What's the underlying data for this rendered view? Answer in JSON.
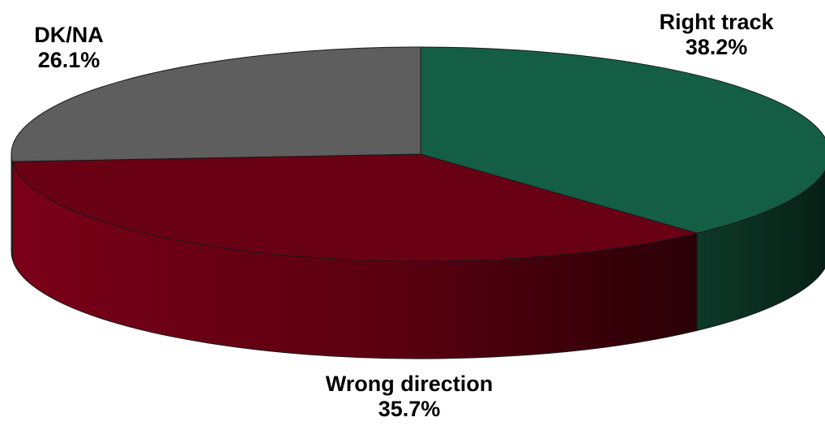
{
  "chart_data": {
    "type": "pie",
    "style": "3d",
    "slices": [
      {
        "label": "Right track",
        "value": 38.2,
        "value_label": "38.2%",
        "color": "#155e46",
        "side_color": "#0b3326"
      },
      {
        "label": "Wrong direction",
        "value": 35.7,
        "value_label": "35.7%",
        "color": "#6a0014",
        "side_color": "#4a000c"
      },
      {
        "label": "DK/NA",
        "value": 26.1,
        "value_label": "26.1%",
        "color": "#5e5e5e",
        "side_color": "#444444"
      }
    ],
    "title": "",
    "legend": "none"
  }
}
